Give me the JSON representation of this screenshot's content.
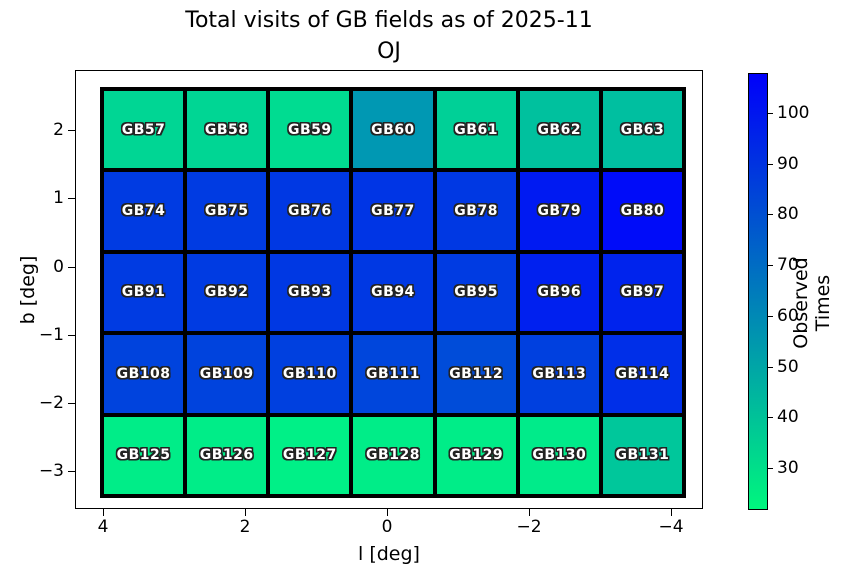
{
  "title": {
    "line1": "Total visits of GB fields as of 2025-11",
    "line2": "OJ"
  },
  "axes": {
    "xlabel": "l [deg]",
    "ylabel": "b [deg]",
    "x_tick_labels": [
      "4",
      "2",
      "0",
      "−2",
      "−4"
    ],
    "y_tick_labels": [
      "2",
      "1",
      "0",
      "−1",
      "−2",
      "−3"
    ]
  },
  "colorbar": {
    "label": "Observed Times",
    "tick_labels": [
      "100",
      "90",
      "80",
      "70",
      "60",
      "50",
      "40",
      "30"
    ],
    "top_color": "#0000fa",
    "bottom_color": "#00f67e"
  },
  "chart_data": {
    "type": "heatmap",
    "title": "Total visits of GB fields as of 2025-11 OJ",
    "xlabel": "l [deg]",
    "ylabel": "b [deg]",
    "colorbar_label": "Observed Times",
    "colormap": "winter_r",
    "value_range": [
      22,
      109
    ],
    "x_axis": {
      "ticks": [
        4,
        2,
        0,
        -2,
        -4
      ],
      "inverted": true
    },
    "y_axis": {
      "ticks": [
        2,
        1,
        0,
        -1,
        -2,
        -3
      ]
    },
    "grid": {
      "columns": 7,
      "rows": 5
    },
    "cells": [
      {
        "name": "GB57",
        "row": 0,
        "col": 0,
        "value": 36,
        "color": "#00d694"
      },
      {
        "name": "GB58",
        "row": 0,
        "col": 1,
        "value": 36,
        "color": "#00d694"
      },
      {
        "name": "GB59",
        "row": 0,
        "col": 2,
        "value": 34,
        "color": "#00dc91"
      },
      {
        "name": "GB60",
        "row": 0,
        "col": 3,
        "value": 57,
        "color": "#0098b3"
      },
      {
        "name": "GB61",
        "row": 0,
        "col": 4,
        "value": 38,
        "color": "#00d097"
      },
      {
        "name": "GB62",
        "row": 0,
        "col": 5,
        "value": 43,
        "color": "#00c19e"
      },
      {
        "name": "GB63",
        "row": 0,
        "col": 6,
        "value": 44,
        "color": "#00bfa0"
      },
      {
        "name": "GB74",
        "row": 1,
        "col": 0,
        "value": 89,
        "color": "#003be2"
      },
      {
        "name": "GB75",
        "row": 1,
        "col": 1,
        "value": 89,
        "color": "#003be2"
      },
      {
        "name": "GB76",
        "row": 1,
        "col": 2,
        "value": 90,
        "color": "#0038e3"
      },
      {
        "name": "GB77",
        "row": 1,
        "col": 3,
        "value": 91,
        "color": "#0035e5"
      },
      {
        "name": "GB78",
        "row": 1,
        "col": 4,
        "value": 90,
        "color": "#0038e3"
      },
      {
        "name": "GB79",
        "row": 1,
        "col": 5,
        "value": 100,
        "color": "#001af2"
      },
      {
        "name": "GB80",
        "row": 1,
        "col": 6,
        "value": 105,
        "color": "#000cf9"
      },
      {
        "name": "GB91",
        "row": 2,
        "col": 0,
        "value": 89,
        "color": "#003be2"
      },
      {
        "name": "GB92",
        "row": 2,
        "col": 1,
        "value": 89,
        "color": "#003be2"
      },
      {
        "name": "GB93",
        "row": 2,
        "col": 2,
        "value": 90,
        "color": "#0038e3"
      },
      {
        "name": "GB94",
        "row": 2,
        "col": 3,
        "value": 90,
        "color": "#0038e3"
      },
      {
        "name": "GB95",
        "row": 2,
        "col": 4,
        "value": 89,
        "color": "#003be2"
      },
      {
        "name": "GB96",
        "row": 2,
        "col": 5,
        "value": 98,
        "color": "#0020ef"
      },
      {
        "name": "GB97",
        "row": 2,
        "col": 6,
        "value": 97,
        "color": "#0023ed"
      },
      {
        "name": "GB108",
        "row": 3,
        "col": 0,
        "value": 86,
        "color": "#0043dd"
      },
      {
        "name": "GB109",
        "row": 3,
        "col": 1,
        "value": 86,
        "color": "#0043dd"
      },
      {
        "name": "GB110",
        "row": 3,
        "col": 2,
        "value": 87,
        "color": "#0040df"
      },
      {
        "name": "GB111",
        "row": 3,
        "col": 3,
        "value": 85,
        "color": "#0046dc"
      },
      {
        "name": "GB112",
        "row": 3,
        "col": 4,
        "value": 83,
        "color": "#004cd9"
      },
      {
        "name": "GB113",
        "row": 3,
        "col": 5,
        "value": 87,
        "color": "#0040df"
      },
      {
        "name": "GB114",
        "row": 3,
        "col": 6,
        "value": 93,
        "color": "#002fe8"
      },
      {
        "name": "GB125",
        "row": 4,
        "col": 0,
        "value": 28,
        "color": "#00ed88"
      },
      {
        "name": "GB126",
        "row": 4,
        "col": 1,
        "value": 28,
        "color": "#00ed88"
      },
      {
        "name": "GB127",
        "row": 4,
        "col": 2,
        "value": 27,
        "color": "#00f087"
      },
      {
        "name": "GB128",
        "row": 4,
        "col": 3,
        "value": 28,
        "color": "#00ed88"
      },
      {
        "name": "GB129",
        "row": 4,
        "col": 4,
        "value": 28,
        "color": "#00ed88"
      },
      {
        "name": "GB130",
        "row": 4,
        "col": 5,
        "value": 29,
        "color": "#00eb8a"
      },
      {
        "name": "GB131",
        "row": 4,
        "col": 6,
        "value": 41,
        "color": "#00c79b"
      }
    ]
  }
}
